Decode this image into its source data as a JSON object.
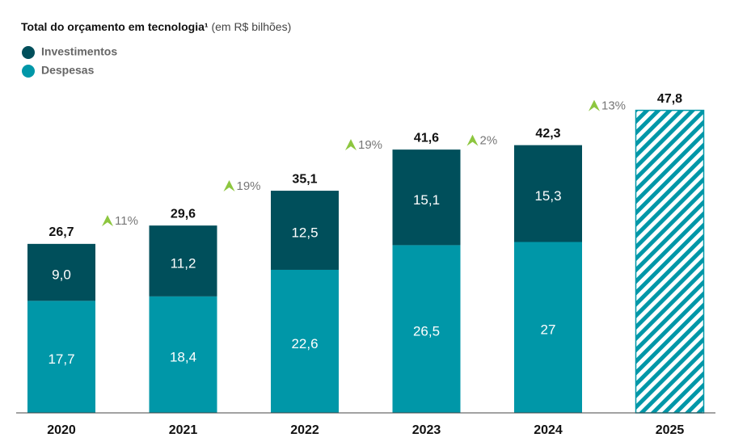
{
  "chart_data": {
    "type": "stacked_bar",
    "title": "Total do orçamento em tecnologia¹",
    "subtitle": "(em R$ bilhões)",
    "categories": [
      "2020",
      "2021",
      "2022",
      "2023",
      "2024",
      "2025"
    ],
    "series": [
      {
        "name": "Investimentos",
        "color": "#004f5b",
        "values": [
          9.0,
          11.2,
          12.5,
          15.1,
          15.3,
          null
        ],
        "value_labels": [
          "9,0",
          "11,2",
          "12,5",
          "15,1",
          "15,3",
          null
        ]
      },
      {
        "name": "Despesas",
        "color": "#0097a8",
        "values": [
          17.7,
          18.4,
          22.6,
          26.5,
          27,
          null
        ],
        "value_labels": [
          "17,7",
          "18,4",
          "22,6",
          "26,5",
          "27",
          null
        ]
      }
    ],
    "totals": {
      "values": [
        26.7,
        29.6,
        35.1,
        41.6,
        42.3,
        47.8
      ],
      "value_labels": [
        "26,7",
        "29,6",
        "35,1",
        "41,6",
        "42,3",
        "47,8"
      ]
    },
    "growth": {
      "values": [
        11,
        19,
        19,
        2,
        13
      ],
      "value_labels": [
        "11%",
        "19%",
        "19%",
        "2%",
        "13%"
      ],
      "color": "#8dc63f"
    },
    "ylim": [
      0,
      48
    ]
  }
}
